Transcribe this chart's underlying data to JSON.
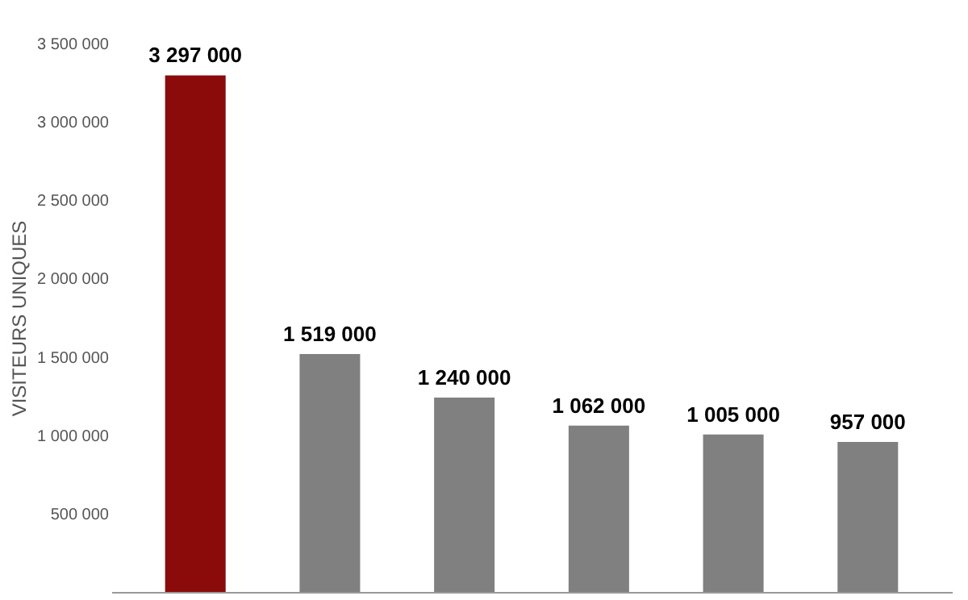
{
  "chart_data": {
    "type": "bar",
    "ylabel": "VISITEURS UNIQUES",
    "categories": [
      null,
      null,
      null,
      null,
      null,
      null
    ],
    "values": [
      3297000,
      1519000,
      1240000,
      1062000,
      1005000,
      957000
    ],
    "colors": [
      "#8b0a0a",
      "#808080",
      "#808080",
      "#808080",
      "#808080",
      "#808080"
    ],
    "value_labels": [
      "3 297 000",
      "1 519 000",
      "1 240 000",
      "1 062 000",
      "1 005 000",
      "957 000"
    ],
    "ylim": [
      0,
      3500000
    ],
    "yticks": [
      {
        "value": 500000,
        "label": "500 000"
      },
      {
        "value": 1000000,
        "label": "1 000 000"
      },
      {
        "value": 1500000,
        "label": "1 500 000"
      },
      {
        "value": 2000000,
        "label": "2 000 000"
      },
      {
        "value": 2500000,
        "label": "2 500 000"
      },
      {
        "value": 3000000,
        "label": "3 000 000"
      },
      {
        "value": 3500000,
        "label": "3 500 000"
      }
    ],
    "grid": false,
    "legend": false
  }
}
